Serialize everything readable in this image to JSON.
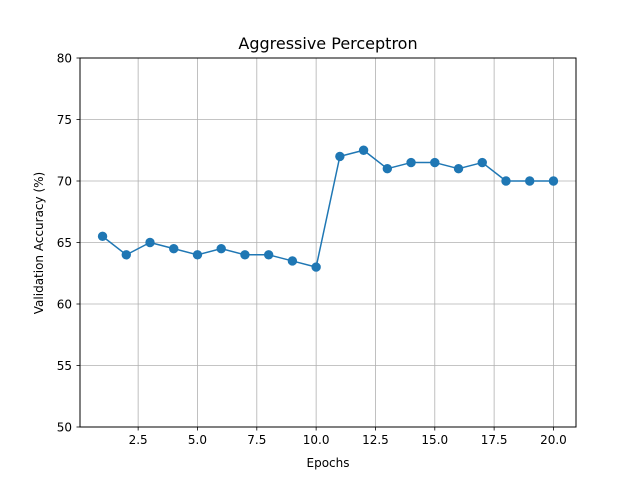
{
  "chart_data": {
    "type": "line",
    "title": "Aggressive Perceptron",
    "xlabel": "Epochs",
    "ylabel": "Validation Accuracy (%)",
    "xlim": [
      0.05,
      20.95
    ],
    "ylim": [
      50,
      80
    ],
    "x_ticks": [
      2.5,
      5.0,
      7.5,
      10.0,
      12.5,
      15.0,
      17.5,
      20.0
    ],
    "x_tick_labels": [
      "2.5",
      "5.0",
      "7.5",
      "10.0",
      "12.5",
      "15.0",
      "17.5",
      "20.0"
    ],
    "y_ticks": [
      50,
      55,
      60,
      65,
      70,
      75,
      80
    ],
    "y_tick_labels": [
      "50",
      "55",
      "60",
      "65",
      "70",
      "75",
      "80"
    ],
    "grid": true,
    "series": [
      {
        "x": [
          1,
          2,
          3,
          4,
          5,
          6,
          7,
          8,
          9,
          10,
          11,
          12,
          13,
          14,
          15,
          16,
          17,
          18,
          19,
          20
        ],
        "values": [
          65.5,
          64.0,
          65.0,
          64.5,
          64.0,
          64.5,
          64.0,
          64.0,
          63.5,
          63.0,
          72.0,
          72.5,
          71.0,
          71.5,
          71.5,
          71.0,
          71.5,
          70.0,
          70.0,
          70.0
        ],
        "color": "#1f77b4",
        "marker": "circle"
      }
    ],
    "colors": {
      "line": "#1f77b4",
      "grid": "#b0b0b0",
      "axes": "#000000",
      "background": "#ffffff"
    }
  }
}
